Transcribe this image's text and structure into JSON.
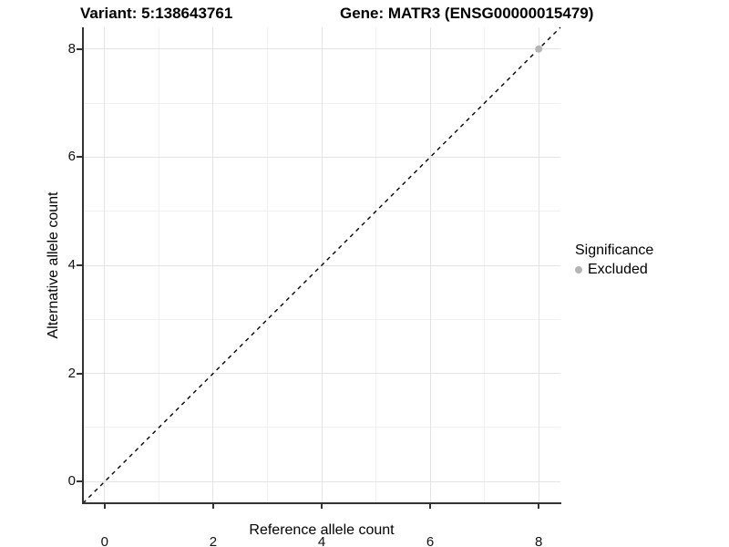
{
  "header": {
    "variant_title": "Variant: 5:138643761",
    "gene_title": "Gene: MATR3 (ENSG00000015479)"
  },
  "chart_data": {
    "type": "scatter",
    "title": "Variant: 5:138643761 | Gene: MATR3 (ENSG00000015479)",
    "xlabel": "Reference allele count",
    "ylabel": "Alternative allele count",
    "xlim": [
      -0.4,
      8.4
    ],
    "ylim": [
      -0.4,
      8.4
    ],
    "x_major_ticks": [
      0,
      2,
      4,
      6,
      8
    ],
    "y_major_ticks": [
      0,
      2,
      4,
      6,
      8
    ],
    "x_minor_ticks": [
      1,
      3,
      5,
      7
    ],
    "y_minor_ticks": [
      1,
      3,
      5,
      7
    ],
    "grid": "on",
    "series": [
      {
        "name": "Excluded",
        "marker": "circle",
        "color": "#b5b5b5",
        "points": [
          {
            "x": 8,
            "y": 8
          }
        ]
      }
    ],
    "reference_line": {
      "label": "identity y=x",
      "style": "dashed",
      "color": "#000000",
      "from": [
        -0.4,
        -0.4
      ],
      "to": [
        8.4,
        8.4
      ]
    },
    "legend": {
      "title": "Significance",
      "position": "right",
      "items": [
        {
          "label": "Excluded",
          "color": "#b5b5b5",
          "marker": "circle"
        }
      ]
    }
  },
  "colors": {
    "axis_line": "#333333",
    "grid_major": "#e4e4e4",
    "grid_minor": "#f1f1f1",
    "background": "#ffffff",
    "point_gray": "#b5b5b5"
  }
}
